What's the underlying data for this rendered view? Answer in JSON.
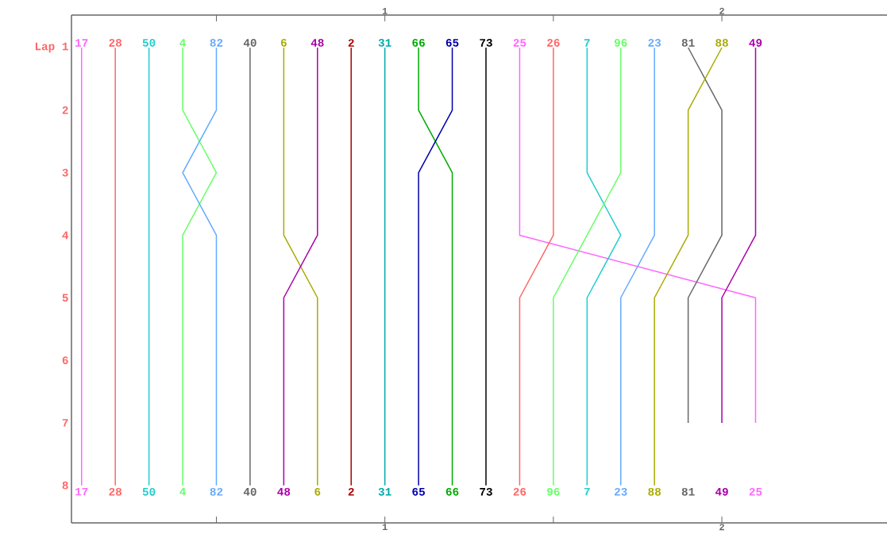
{
  "chart_data": {
    "type": "line",
    "xlim": [
      0.07,
      2.49
    ],
    "ylim": [
      8.6,
      0.48
    ],
    "xticks": [
      {
        "value": 0.5,
        "label": null
      },
      1,
      {
        "value": 1.5,
        "label": null
      },
      2
    ],
    "x2lim": [
      0.07,
      2.49
    ],
    "x2ticks": [
      {
        "value": 0.5,
        "label": null
      },
      1,
      {
        "value": 1.5,
        "label": null
      },
      2
    ],
    "yticks": [
      {
        "value": 1,
        "label": "Lap 1"
      },
      2,
      3,
      4,
      5,
      6,
      7,
      8
    ],
    "series": [
      {
        "name": "17",
        "color": "#ff66ff",
        "x": [
          0.1,
          0.1,
          0.1,
          0.1,
          0.1,
          0.1,
          0.1,
          0.1
        ],
        "values": [
          1,
          2,
          3,
          4,
          5,
          6,
          7,
          8
        ]
      },
      {
        "name": "28",
        "color": "#ff6666",
        "x": [
          0.2,
          0.2,
          0.2,
          0.2,
          0.2,
          0.2,
          0.2,
          0.2
        ],
        "values": [
          1,
          2,
          3,
          4,
          5,
          6,
          7,
          8
        ]
      },
      {
        "name": "50",
        "color": "#22cccc",
        "x": [
          0.3,
          0.3,
          0.3,
          0.3,
          0.3,
          0.3,
          0.3,
          0.3
        ],
        "values": [
          1,
          2,
          3,
          4,
          5,
          6,
          7,
          8
        ]
      },
      {
        "name": "4",
        "color": "#66ff66",
        "x": [
          0.4,
          0.4,
          0.5,
          0.4,
          0.4,
          0.4,
          0.4,
          0.4
        ],
        "values": [
          1,
          2,
          3,
          4,
          5,
          6,
          7,
          8
        ]
      },
      {
        "name": "82",
        "color": "#66aaff",
        "x": [
          0.5,
          0.5,
          0.4,
          0.5,
          0.5,
          0.5,
          0.5,
          0.5
        ],
        "values": [
          1,
          2,
          3,
          4,
          5,
          6,
          7,
          8
        ]
      },
      {
        "name": "40",
        "color": "#666666",
        "x": [
          0.6,
          0.6,
          0.6,
          0.6,
          0.6,
          0.6,
          0.6,
          0.6
        ],
        "values": [
          1,
          2,
          3,
          4,
          5,
          6,
          7,
          8
        ]
      },
      {
        "name": "6",
        "color": "#aaaa00",
        "x": [
          0.7,
          0.7,
          0.7,
          0.7,
          0.8,
          0.8,
          0.8,
          0.8
        ],
        "values": [
          1,
          2,
          3,
          4,
          5,
          6,
          7,
          8
        ]
      },
      {
        "name": "48",
        "color": "#aa00aa",
        "x": [
          0.8,
          0.8,
          0.8,
          0.8,
          0.7,
          0.7,
          0.7,
          0.7
        ],
        "values": [
          1,
          2,
          3,
          4,
          5,
          6,
          7,
          8
        ]
      },
      {
        "name": "2",
        "color": "#aa0000",
        "x": [
          0.9,
          0.9,
          0.9,
          0.9,
          0.9,
          0.9,
          0.9,
          0.9
        ],
        "values": [
          1,
          2,
          3,
          4,
          5,
          6,
          7,
          8
        ]
      },
      {
        "name": "31",
        "color": "#00aaaa",
        "x": [
          1.0,
          1.0,
          1.0,
          1.0,
          1.0,
          1.0,
          1.0,
          1.0
        ],
        "values": [
          1,
          2,
          3,
          4,
          5,
          6,
          7,
          8
        ]
      },
      {
        "name": "66",
        "color": "#00aa00",
        "x": [
          1.1,
          1.1,
          1.2,
          1.2,
          1.2,
          1.2,
          1.2,
          1.2
        ],
        "values": [
          1,
          2,
          3,
          4,
          5,
          6,
          7,
          8
        ]
      },
      {
        "name": "65",
        "color": "#0000aa",
        "x": [
          1.2,
          1.2,
          1.1,
          1.1,
          1.1,
          1.1,
          1.1,
          1.1
        ],
        "values": [
          1,
          2,
          3,
          4,
          5,
          6,
          7,
          8
        ]
      },
      {
        "name": "73",
        "color": "#000000",
        "x": [
          1.3,
          1.3,
          1.3,
          1.3,
          1.3,
          1.3,
          1.3,
          1.3
        ],
        "values": [
          1,
          2,
          3,
          4,
          5,
          6,
          7,
          8
        ]
      },
      {
        "name": "25",
        "color": "#ff66ff",
        "x": [
          1.4,
          1.4,
          1.4,
          1.4,
          2.1,
          2.1,
          2.1
        ],
        "values": [
          1,
          2,
          3,
          4,
          5,
          6,
          7
        ]
      },
      {
        "name": "26",
        "color": "#ff6666",
        "x": [
          1.5,
          1.5,
          1.5,
          1.5,
          1.4,
          1.4,
          1.4,
          1.4
        ],
        "values": [
          1,
          2,
          3,
          4,
          5,
          6,
          7,
          8
        ]
      },
      {
        "name": "7",
        "color": "#22cccc",
        "x": [
          1.6,
          1.6,
          1.6,
          1.7,
          1.6,
          1.6,
          1.6,
          1.6
        ],
        "values": [
          1,
          2,
          3,
          4,
          5,
          6,
          7,
          8
        ]
      },
      {
        "name": "96",
        "color": "#66ff66",
        "x": [
          1.7,
          1.7,
          1.7,
          1.6,
          1.5,
          1.5,
          1.5,
          1.5
        ],
        "values": [
          1,
          2,
          3,
          4,
          5,
          6,
          7,
          8
        ]
      },
      {
        "name": "23",
        "color": "#66aaff",
        "x": [
          1.8,
          1.8,
          1.8,
          1.8,
          1.7,
          1.7,
          1.7,
          1.7
        ],
        "values": [
          1,
          2,
          3,
          4,
          5,
          6,
          7,
          8
        ]
      },
      {
        "name": "81",
        "color": "#666666",
        "x": [
          1.9,
          2.0,
          2.0,
          2.0,
          1.9,
          1.9,
          1.9
        ],
        "values": [
          1,
          2,
          3,
          4,
          5,
          6,
          7
        ]
      },
      {
        "name": "88",
        "color": "#aaaa00",
        "x": [
          2.0,
          1.9,
          1.9,
          1.9,
          1.8,
          1.8,
          1.8,
          1.8
        ],
        "values": [
          1,
          2,
          3,
          4,
          5,
          6,
          7,
          8
        ]
      },
      {
        "name": "49",
        "color": "#aa00aa",
        "x": [
          2.1,
          2.1,
          2.1,
          2.1,
          2.0,
          2.0,
          2.0
        ],
        "values": [
          1,
          2,
          3,
          4,
          5,
          6,
          7
        ]
      }
    ]
  }
}
